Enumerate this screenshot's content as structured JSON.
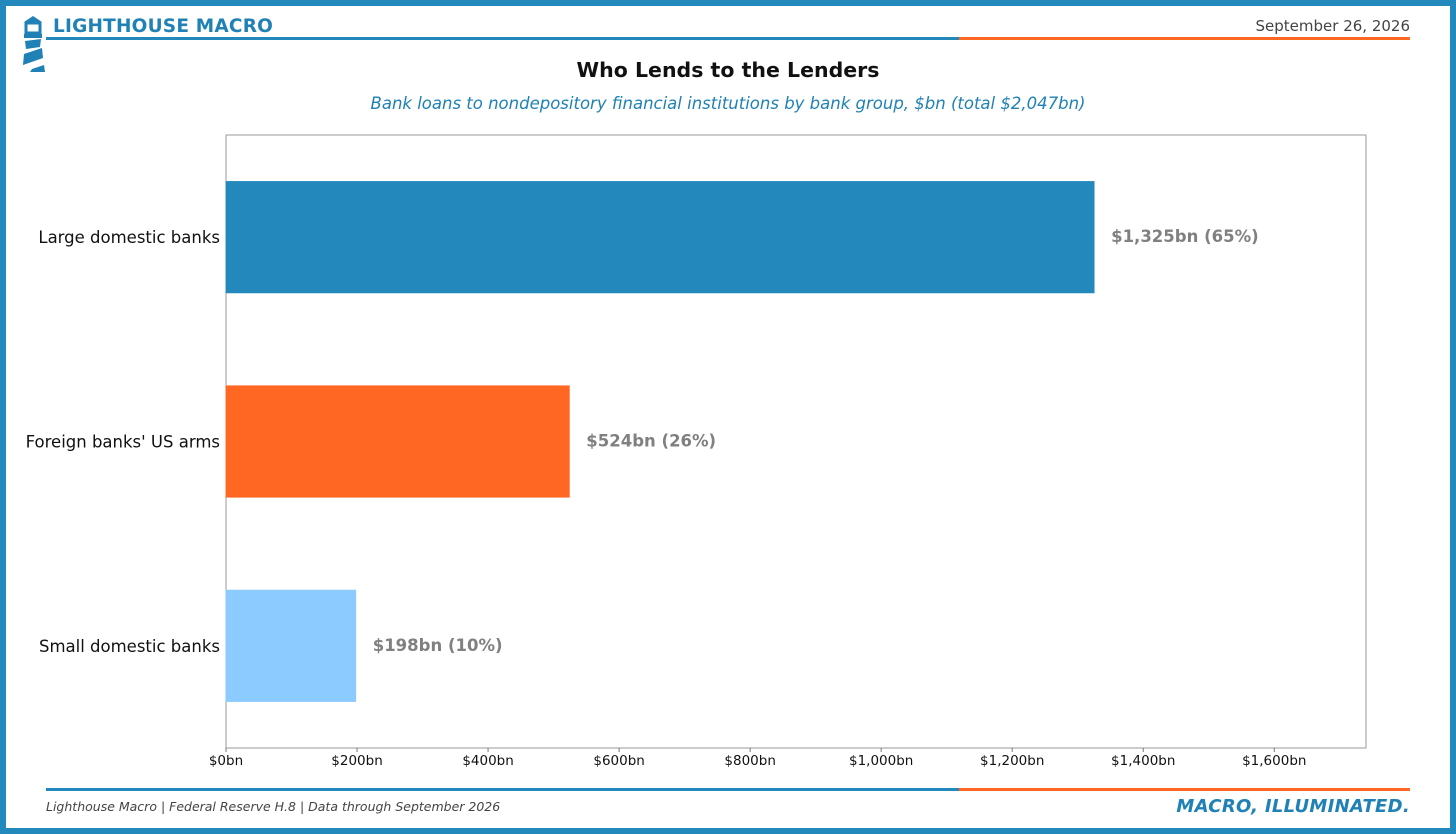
{
  "header": {
    "brand": "LIGHTHOUSE MACRO",
    "date": "September 26, 2026",
    "logo_icon": "lighthouse-icon"
  },
  "chart_data": {
    "type": "bar",
    "orientation": "horizontal",
    "title": "Who Lends to the Lenders",
    "subtitle": "Bank loans to nondepository financial institutions by bank group, $bn (total $2,047bn)",
    "categories": [
      "Large domestic banks",
      "Foreign banks' US arms",
      "Small domestic banks"
    ],
    "values": [
      1325,
      524,
      198
    ],
    "value_labels": [
      "$1,325bn  (65%)",
      "$524bn  (26%)",
      "$198bn  (10%)"
    ],
    "colors": [
      "#2389bd",
      "#ff6723",
      "#8ccbff"
    ],
    "xlim": [
      0,
      1740
    ],
    "xticks": [
      0,
      200,
      400,
      600,
      800,
      1000,
      1200,
      1400,
      1600
    ],
    "xtick_labels": [
      "$0bn",
      "$200bn",
      "$400bn",
      "$600bn",
      "$800bn",
      "$1,000bn",
      "$1,200bn",
      "$1,400bn",
      "$1,600bn"
    ],
    "xlabel": "",
    "ylabel": "",
    "grid": false,
    "legend": "none"
  },
  "footer": {
    "source": "Lighthouse Macro | Federal Reserve H.8 | Data through September 2026",
    "tagline": "MACRO, ILLUMINATED."
  }
}
